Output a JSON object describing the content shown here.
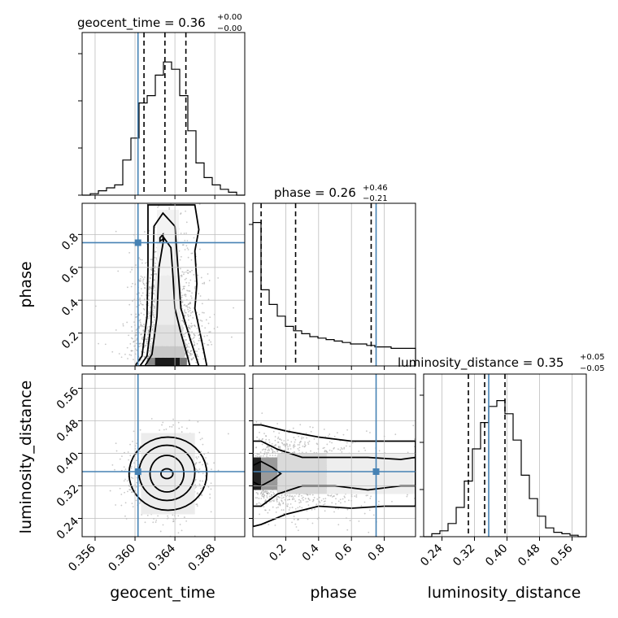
{
  "chart_data": {
    "type": "corner",
    "parameters": [
      "geocent_time",
      "phase",
      "luminosity_distance"
    ],
    "truth": {
      "geocent_time": 0.3603,
      "phase": 0.75,
      "luminosity_distance": 0.355
    },
    "titles": [
      {
        "param": "geocent_time",
        "median": "0.36",
        "plus": "+0.00",
        "minus": "−0.00"
      },
      {
        "param": "phase",
        "median": "0.26",
        "plus": "+0.46",
        "minus": "−0.21"
      },
      {
        "param": "luminosity_distance",
        "median": "0.35",
        "plus": "+0.05",
        "minus": "−0.05"
      }
    ],
    "ranges": {
      "geocent_time": [
        0.3547,
        0.371
      ],
      "phase": [
        0.0,
        0.99
      ],
      "luminosity_distance": [
        0.195,
        0.595
      ]
    },
    "ticks": {
      "geocent_time": [
        "0.356",
        "0.360",
        "0.364",
        "0.368"
      ],
      "phase": [
        "0.2",
        "0.4",
        "0.6",
        "0.8"
      ],
      "luminosity_distance": [
        "0.24",
        "0.32",
        "0.40",
        "0.48",
        "0.56"
      ]
    },
    "quantiles": {
      "geocent_time": [
        0.3609,
        0.363,
        0.3651
      ],
      "phase": [
        0.05,
        0.26,
        0.72
      ],
      "luminosity_distance": [
        0.305,
        0.345,
        0.395
      ]
    },
    "histograms": {
      "geocent_time": [
        0.0,
        0.01,
        0.03,
        0.05,
        0.07,
        0.24,
        0.39,
        0.63,
        0.68,
        0.82,
        0.91,
        0.86,
        0.68,
        0.44,
        0.22,
        0.12,
        0.07,
        0.04,
        0.02,
        0.0
      ],
      "phase": [
        0.98,
        0.52,
        0.42,
        0.34,
        0.27,
        0.24,
        0.22,
        0.2,
        0.19,
        0.18,
        0.17,
        0.16,
        0.15,
        0.15,
        0.14,
        0.13,
        0.13,
        0.12,
        0.12,
        0.12
      ],
      "luminosity_distance": [
        0.0,
        0.02,
        0.04,
        0.09,
        0.2,
        0.38,
        0.6,
        0.78,
        0.89,
        0.93,
        0.84,
        0.66,
        0.42,
        0.26,
        0.14,
        0.06,
        0.03,
        0.02,
        0.01,
        0.0
      ]
    },
    "grid": true
  }
}
